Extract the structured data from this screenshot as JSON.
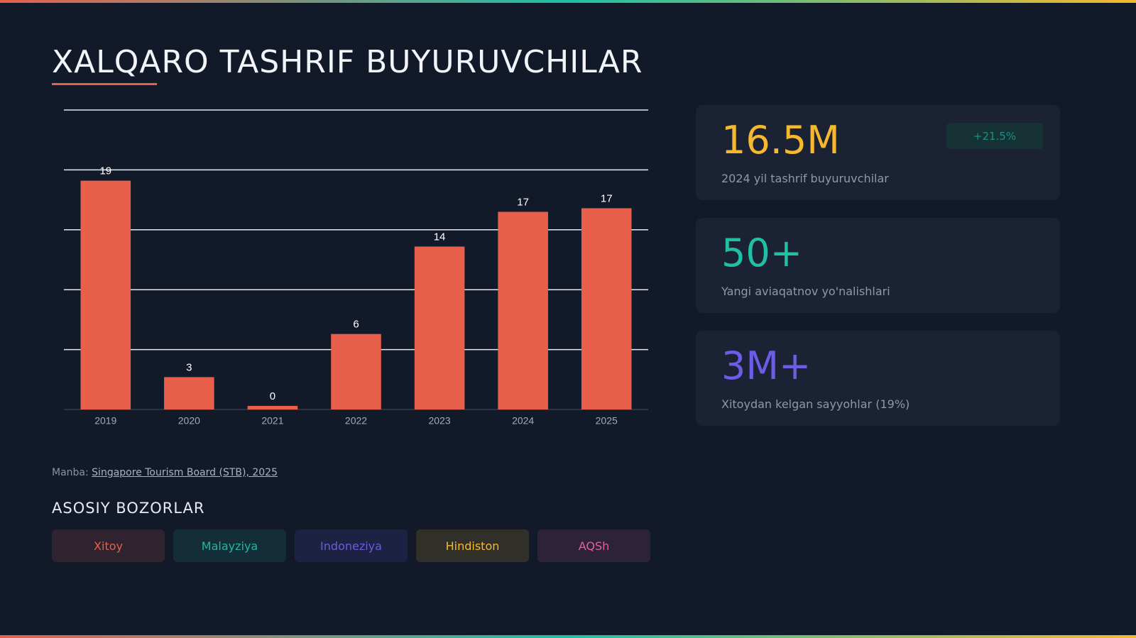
{
  "header": {
    "title": "XALQARO TASHRIF BUYURUVCHILAR"
  },
  "chart_data": {
    "type": "bar",
    "categories": [
      "2019",
      "2020",
      "2021",
      "2022",
      "2023",
      "2024",
      "2025"
    ],
    "values": [
      19.1,
      2.7,
      0.3,
      6.3,
      13.6,
      16.5,
      16.8
    ],
    "value_labels": [
      "19",
      "3",
      "0",
      "6",
      "14",
      "17",
      "17"
    ],
    "color": "#e8604c",
    "ylim": [
      0,
      25
    ],
    "yticks": [
      5,
      10,
      15,
      20,
      25
    ],
    "y_tick_labels": false,
    "grid": true
  },
  "source": {
    "prefix": "Manba:",
    "link": "Singapore Tourism Board (STB), 2025"
  },
  "stats": [
    {
      "value": "16.5M",
      "badge": "+21.5%",
      "label": "2024 yil tashrif buyuruvchilar",
      "color": "#f5b82e"
    },
    {
      "value": "50+",
      "label": "Yangi aviaqatnov yo'nalishlari",
      "color": "#1fc0a6"
    },
    {
      "value": "3M+",
      "label": "Xitoydan kelgan sayyohlar (19%)",
      "color": "#6c5ce7"
    }
  ],
  "markets": {
    "title": "ASOSIY BOZORLAR",
    "items": [
      {
        "label": "Xitoy",
        "color": "#e8604c"
      },
      {
        "label": "Malayziya",
        "color": "#1fb7a0"
      },
      {
        "label": "Indoneziya",
        "color": "#6b5be0"
      },
      {
        "label": "Hindiston",
        "color": "#f5b82e"
      },
      {
        "label": "AQSh",
        "color": "#e060a0"
      }
    ]
  }
}
